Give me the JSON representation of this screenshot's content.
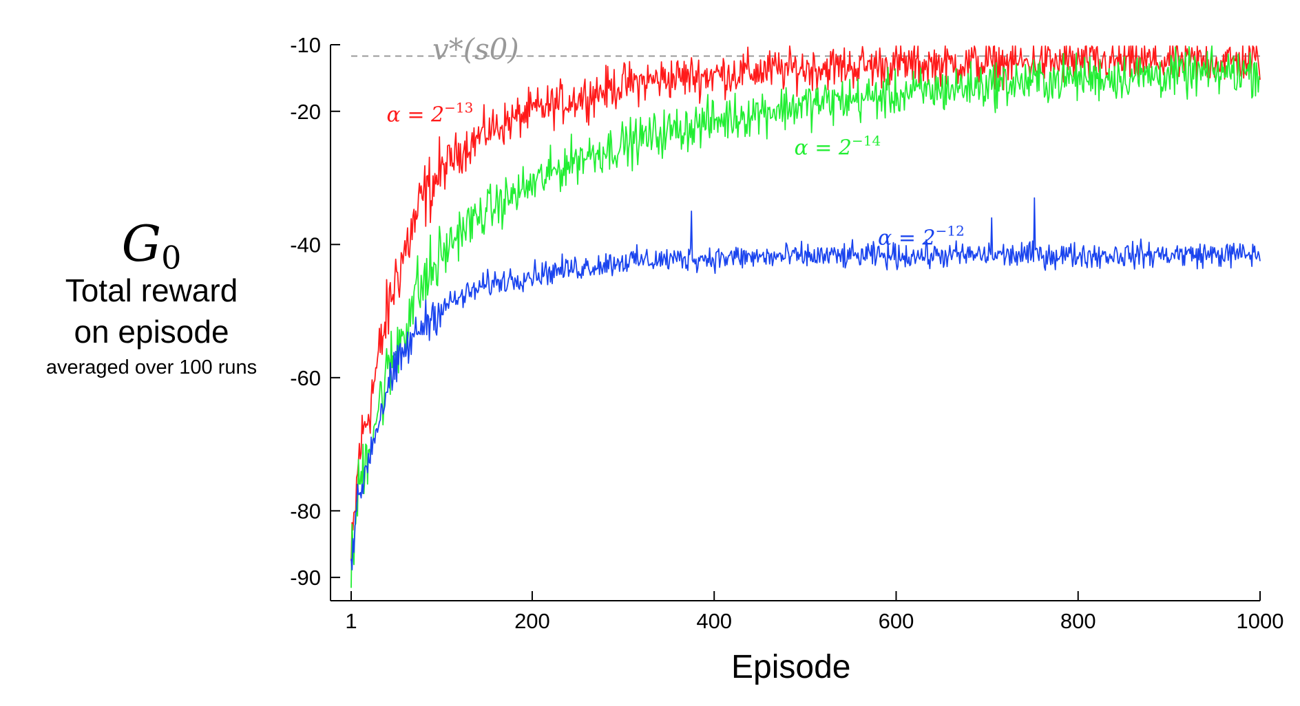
{
  "chart_data": {
    "type": "line",
    "xlabel": "Episode",
    "ylabel": {
      "symbol": "G",
      "subscript": "0",
      "line1": "Total reward",
      "line2": "on episode",
      "line3": "averaged over 100 runs"
    },
    "xlim": [
      1,
      1000
    ],
    "ylim": [
      -93.5,
      -10
    ],
    "xticks": [
      1,
      200,
      400,
      600,
      800,
      1000
    ],
    "yticks": [
      -10,
      -20,
      -40,
      -60,
      -80,
      -90
    ],
    "grid": false,
    "reference_line": {
      "label": "v*(s0)",
      "y": -11.7,
      "color": "#999999"
    },
    "series": [
      {
        "name": "α = 2^-13",
        "label_math": {
          "base": "α = 2",
          "exp": "−13"
        },
        "label_at": [
          40,
          -21.5
        ],
        "color": "#ff1a1a",
        "noise": 3.2,
        "x": [
          1,
          10,
          20,
          30,
          40,
          50,
          60,
          70,
          80,
          100,
          120,
          150,
          200,
          250,
          300,
          350,
          400,
          450,
          500,
          600,
          700,
          800,
          900,
          1000
        ],
        "y": [
          -88,
          -71,
          -65,
          -58,
          -51,
          -45,
          -41,
          -37,
          -33,
          -29,
          -26,
          -23,
          -20,
          -18,
          -16,
          -15,
          -14.5,
          -14,
          -13.5,
          -13,
          -12.8,
          -12.6,
          -12.5,
          -12.4
        ]
      },
      {
        "name": "α = 2^-14",
        "label_math": {
          "base": "α = 2",
          "exp": "−14"
        },
        "label_at": [
          488,
          -26.5
        ],
        "color": "#22ee33",
        "noise": 3.4,
        "x": [
          1,
          10,
          20,
          30,
          40,
          50,
          60,
          70,
          80,
          100,
          120,
          150,
          200,
          250,
          300,
          350,
          400,
          450,
          500,
          600,
          700,
          800,
          900,
          1000
        ],
        "y": [
          -89,
          -76,
          -70,
          -65,
          -60,
          -56,
          -52,
          -48,
          -46,
          -42,
          -38,
          -35,
          -31,
          -27,
          -25,
          -23,
          -21.5,
          -20,
          -19,
          -17.5,
          -16,
          -15,
          -14.5,
          -14
        ]
      },
      {
        "name": "α = 2^-12",
        "label_math": {
          "base": "α = 2",
          "exp": "−12"
        },
        "label_at": [
          580,
          -40
        ],
        "color": "#1a44ee",
        "noise": 1.9,
        "spikes": [
          [
            375,
            -35
          ],
          [
            705,
            -36
          ],
          [
            752,
            -33
          ]
        ],
        "x": [
          1,
          5,
          10,
          20,
          30,
          40,
          50,
          60,
          80,
          100,
          150,
          200,
          300,
          400,
          500,
          600,
          700,
          800,
          900,
          1000
        ],
        "y": [
          -88,
          -82,
          -78,
          -72,
          -67,
          -62,
          -59,
          -56,
          -52,
          -49.5,
          -46,
          -44.5,
          -42.5,
          -42,
          -41.8,
          -41.7,
          -41.6,
          -41.6,
          -41.5,
          -41.5
        ]
      }
    ]
  }
}
